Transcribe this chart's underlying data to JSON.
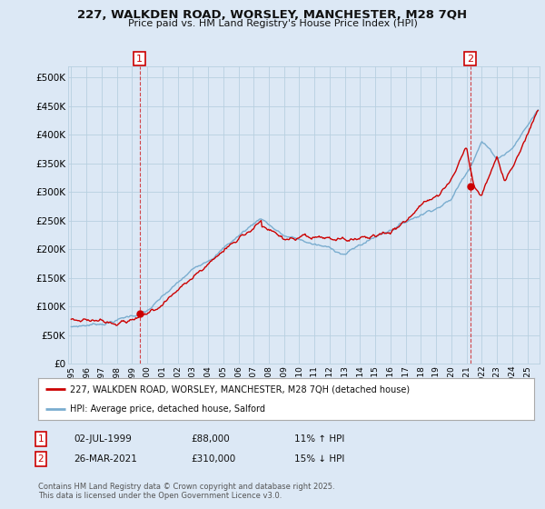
{
  "title1": "227, WALKDEN ROAD, WORSLEY, MANCHESTER, M28 7QH",
  "title2": "Price paid vs. HM Land Registry's House Price Index (HPI)",
  "legend_label1": "227, WALKDEN ROAD, WORSLEY, MANCHESTER, M28 7QH (detached house)",
  "legend_label2": "HPI: Average price, detached house, Salford",
  "footer": "Contains HM Land Registry data © Crown copyright and database right 2025.\nThis data is licensed under the Open Government Licence v3.0.",
  "annotation1": {
    "num": "1",
    "date": "02-JUL-1999",
    "price": "£88,000",
    "hpi": "11% ↑ HPI"
  },
  "annotation2": {
    "num": "2",
    "date": "26-MAR-2021",
    "price": "£310,000",
    "hpi": "15% ↓ HPI"
  },
  "marker1_x": 1999.5,
  "marker2_x": 2021.25,
  "marker1_y": 88000,
  "marker2_y": 310000,
  "ylim": [
    0,
    520000
  ],
  "xlim_start": 1994.8,
  "xlim_end": 2025.8,
  "yticks": [
    0,
    50000,
    100000,
    150000,
    200000,
    250000,
    300000,
    350000,
    400000,
    450000,
    500000
  ],
  "xtick_years": [
    1995,
    1996,
    1997,
    1998,
    1999,
    2000,
    2001,
    2002,
    2003,
    2004,
    2005,
    2006,
    2007,
    2008,
    2009,
    2010,
    2011,
    2012,
    2013,
    2014,
    2015,
    2016,
    2017,
    2018,
    2019,
    2020,
    2021,
    2022,
    2023,
    2024,
    2025
  ],
  "line1_color": "#cc0000",
  "line2_color": "#7aadcf",
  "bg_color": "#dce8f5",
  "plot_bg": "#dce8f5",
  "grid_color": "#b8cfe0",
  "annotation_box_color": "#cc0000"
}
